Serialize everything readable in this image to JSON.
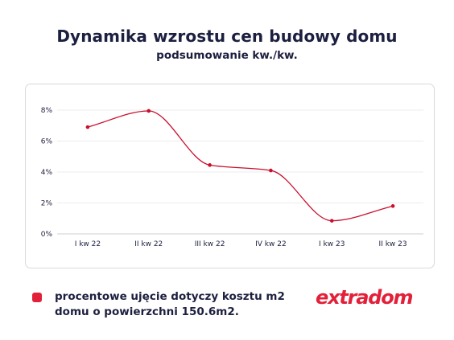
{
  "header": {
    "title": "Dynamika wzrostu cen budowy domu",
    "subtitle": "podsumowanie kw./kw."
  },
  "chart_data": {
    "type": "line",
    "categories": [
      "I kw 22",
      "II kw 22",
      "III kw 22",
      "IV kw 22",
      "I kw 23",
      "II kw 23"
    ],
    "series": [
      {
        "values": [
          6.9,
          7.95,
          4.45,
          4.1,
          0.85,
          1.8
        ],
        "color": "#c8102e"
      }
    ],
    "y_ticks": [
      "0%",
      "2%",
      "4%",
      "6%",
      "8%"
    ],
    "ylim": [
      0,
      8
    ],
    "grid": "horizontal",
    "xlabel": "",
    "ylabel": ""
  },
  "legend": {
    "text_line1": "procentowe ujęcie dotyczy kosztu m2",
    "text_line2": "domu o powierzchni 150.6m2.",
    "color": "#e3203a"
  },
  "brand": {
    "logo": "extradom",
    "color": "#e3203a"
  }
}
